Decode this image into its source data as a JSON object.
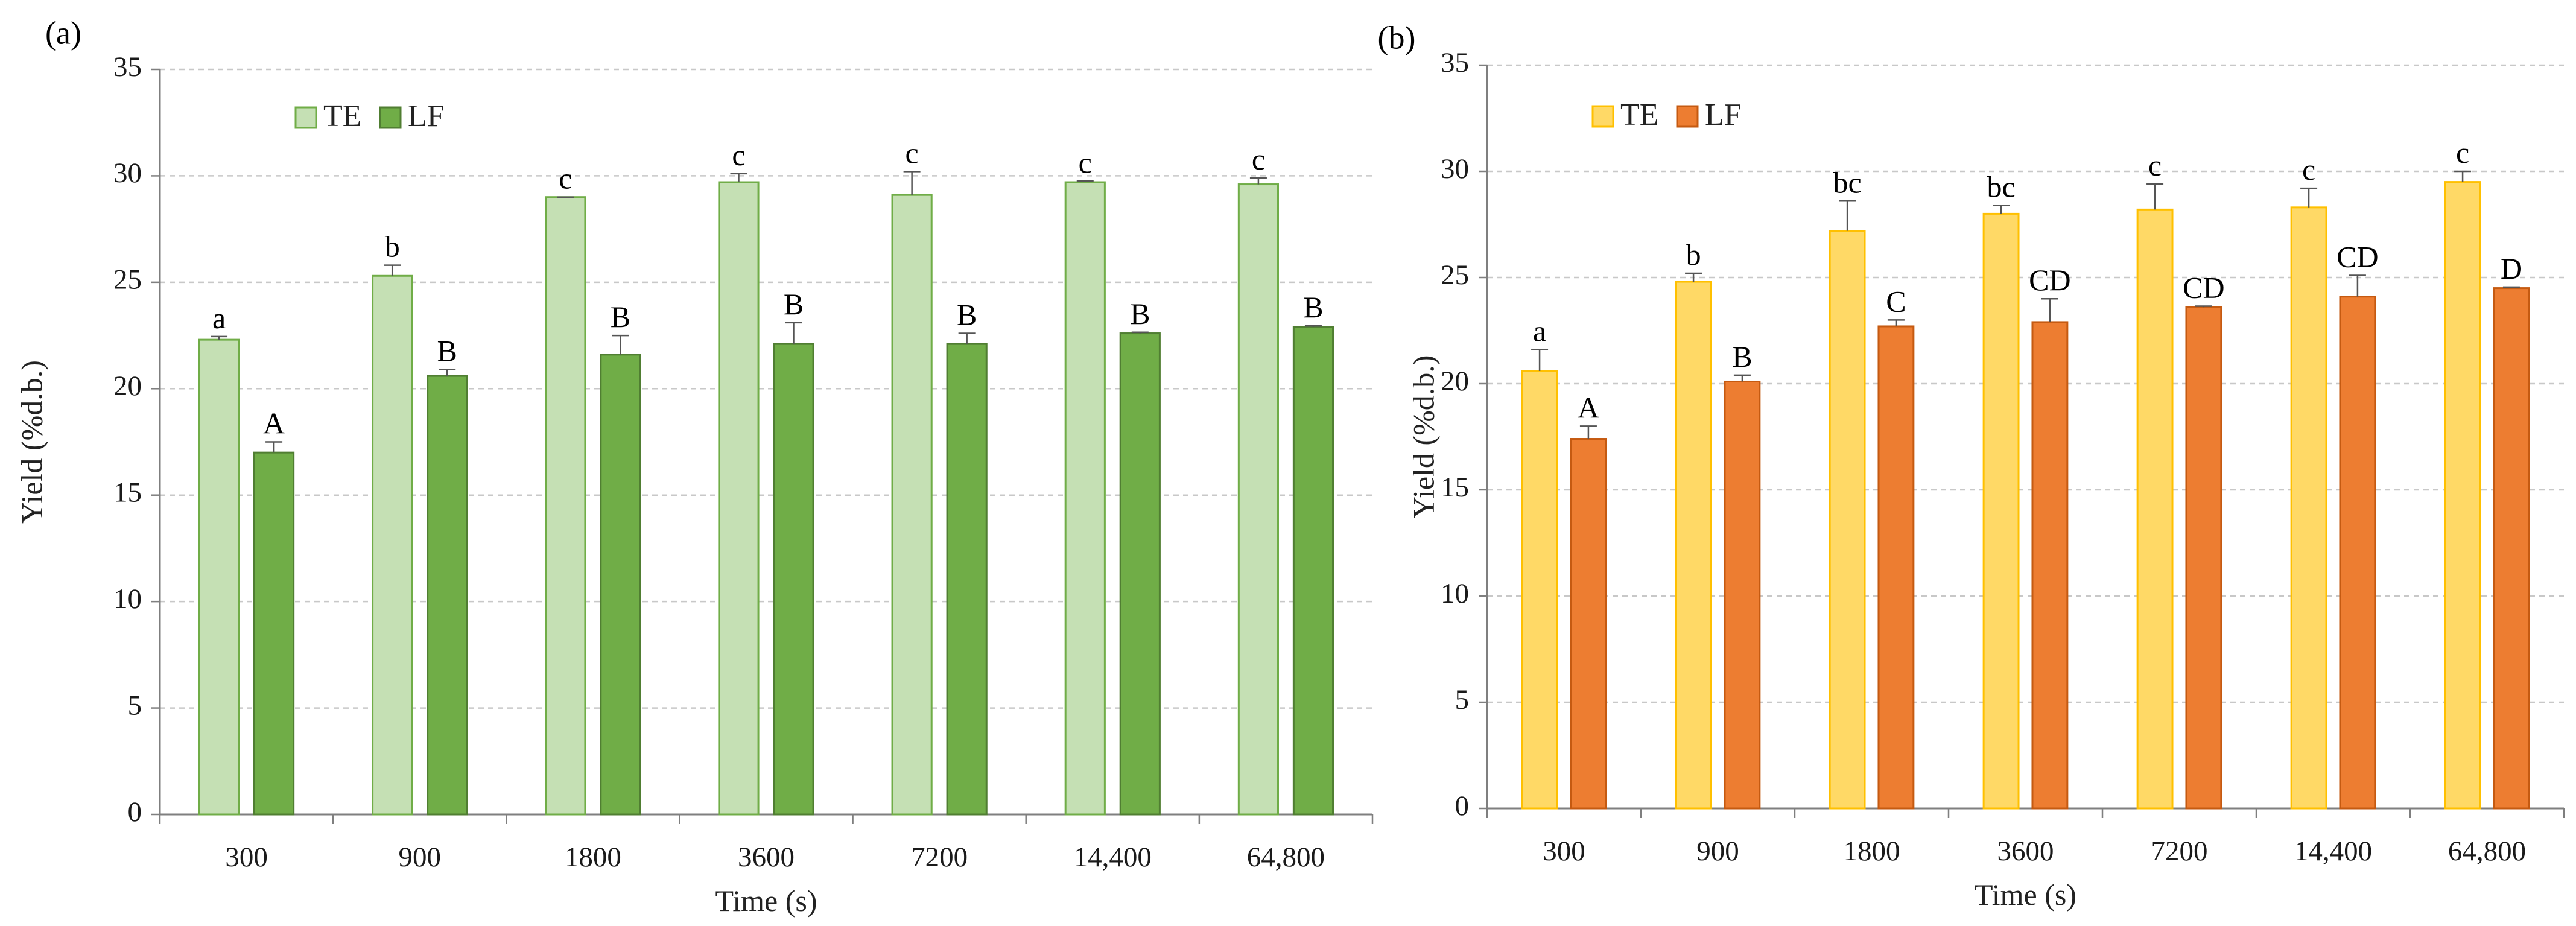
{
  "chart_data": [
    {
      "type": "bar",
      "panel_label": "(a)",
      "categories": [
        "300",
        "900",
        "1800",
        "3600",
        "7200",
        "14,400",
        "64,800"
      ],
      "series": [
        {
          "name": "TE",
          "color": "#c5e0b4",
          "stroke": "#70ad47",
          "values": [
            22.3,
            25.3,
            29.0,
            29.7,
            29.1,
            29.7,
            29.6
          ],
          "errors": [
            0.15,
            0.5,
            0.0,
            0.4,
            1.1,
            0.05,
            0.3
          ],
          "labels": [
            "a",
            "b",
            "c",
            "c",
            "c",
            "c",
            "c"
          ]
        },
        {
          "name": "LF",
          "color": "#70ad47",
          "stroke": "#507e32",
          "values": [
            17.0,
            20.6,
            21.6,
            22.1,
            22.1,
            22.6,
            22.9
          ],
          "errors": [
            0.5,
            0.3,
            0.9,
            1.0,
            0.5,
            0.05,
            0.05
          ],
          "labels": [
            "A",
            "B",
            "B",
            "B",
            "B",
            "B",
            "B"
          ]
        }
      ],
      "xlabel": "Time (s)",
      "ylabel": "Yield (%d.b.)",
      "ylim": [
        0,
        35
      ],
      "yticks": [
        "0",
        "5",
        "10",
        "15",
        "20",
        "25",
        "30",
        "35"
      ],
      "grid": true,
      "legend_position": "top-left"
    },
    {
      "type": "bar",
      "panel_label": "(b)",
      "categories": [
        "300",
        "900",
        "1800",
        "3600",
        "7200",
        "14,400",
        "64,800"
      ],
      "series": [
        {
          "name": "TE",
          "color": "#ffd966",
          "stroke": "#ffc000",
          "values": [
            20.6,
            24.8,
            27.2,
            28.0,
            28.2,
            28.3,
            29.5
          ],
          "errors": [
            1.0,
            0.4,
            1.4,
            0.4,
            1.2,
            0.9,
            0.5
          ],
          "labels": [
            "a",
            "b",
            "bc",
            "bc",
            "c",
            "c",
            "c"
          ]
        },
        {
          "name": "LF",
          "color": "#ed7d31",
          "stroke": "#c55a11",
          "values": [
            17.4,
            20.1,
            22.7,
            22.9,
            23.6,
            24.1,
            24.5
          ],
          "errors": [
            0.6,
            0.3,
            0.3,
            1.1,
            0.05,
            1.0,
            0.05
          ],
          "labels": [
            "A",
            "B",
            "C",
            "CD",
            "CD",
            "CD",
            "D"
          ]
        }
      ],
      "xlabel": "Time (s)",
      "ylabel": "Yield (%d.b.)",
      "ylim": [
        0,
        35
      ],
      "yticks": [
        "0",
        "5",
        "10",
        "15",
        "20",
        "25",
        "30",
        "35"
      ],
      "grid": true,
      "legend_position": "top-left"
    }
  ]
}
